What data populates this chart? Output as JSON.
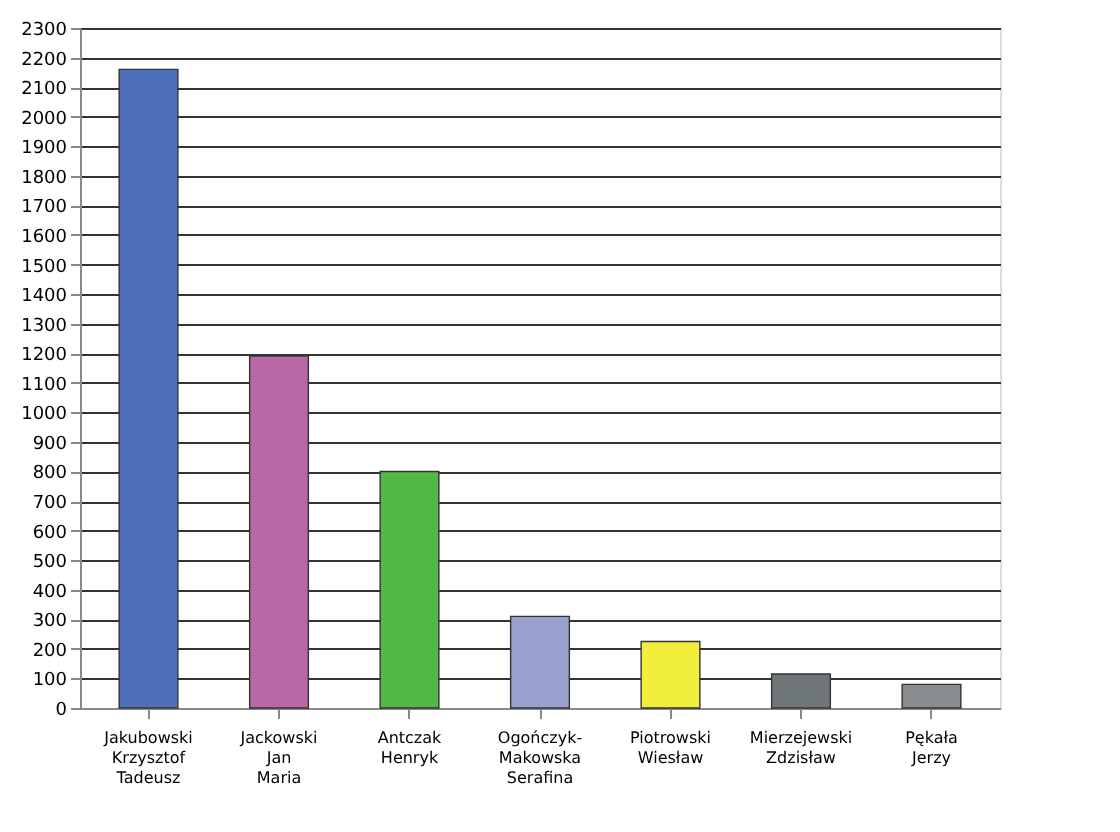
{
  "chart_data": {
    "type": "bar",
    "categories": [
      "Jakubowski Krzysztof Tadeusz",
      "Jackowski Jan Maria",
      "Antczak Henryk",
      "Ogończyk-Makowska Serafina",
      "Piotrowski Wiesław",
      "Mierzejewski Zdzisław",
      "Pękała Jerzy"
    ],
    "values": [
      2160,
      1190,
      800,
      310,
      225,
      115,
      80
    ],
    "colors": [
      "#4f70b8",
      "#b868a4",
      "#52b848",
      "#9aa0d0",
      "#f2ee3c",
      "#6f7678",
      "#888c8e"
    ],
    "ylim": [
      0,
      2300
    ],
    "yticks": [
      0,
      100,
      200,
      300,
      400,
      500,
      600,
      700,
      800,
      900,
      1000,
      1100,
      1200,
      1300,
      1400,
      1500,
      1600,
      1700,
      1800,
      1900,
      2000,
      2100,
      2200,
      2300
    ],
    "grid": "y"
  }
}
